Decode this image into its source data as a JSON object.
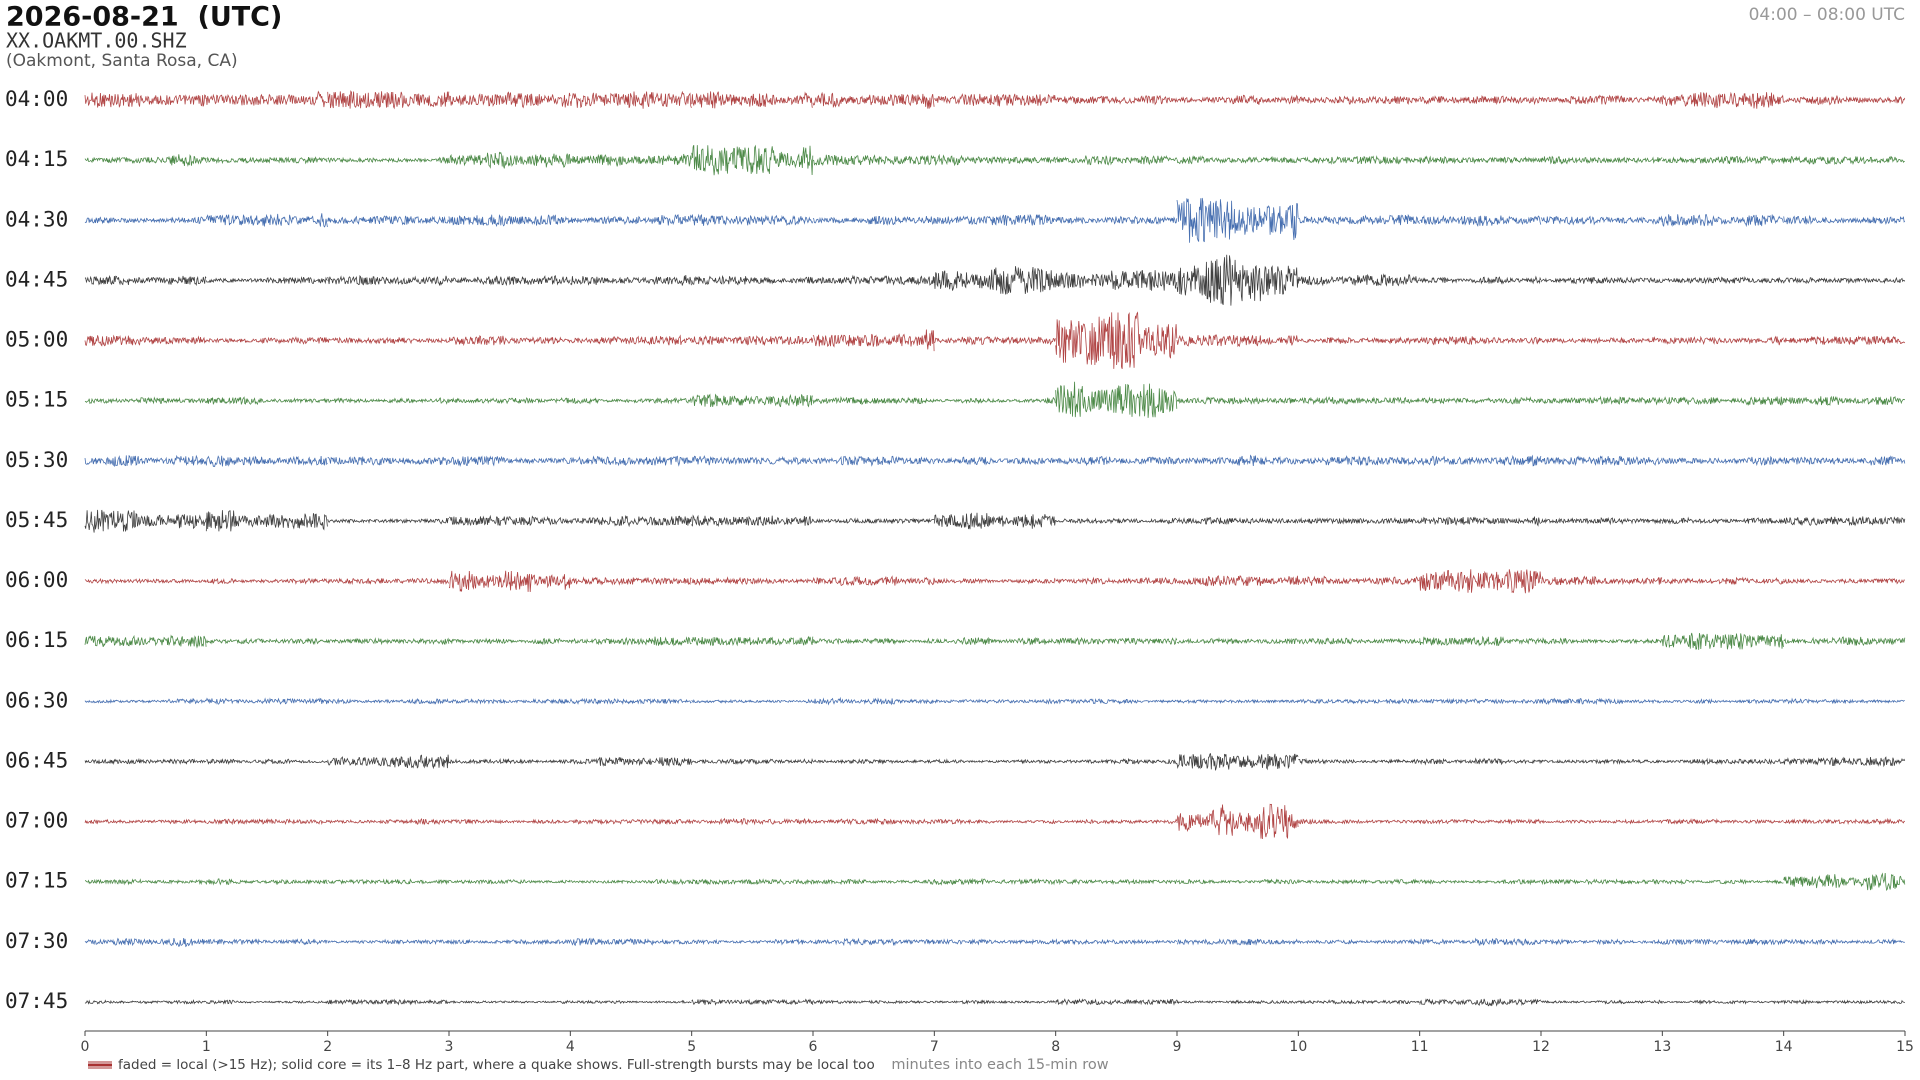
{
  "chart_data": {
    "type": "helicorder",
    "title": "2026-08-21  (UTC)",
    "subtitle": "XX.OAKMT.00.SHZ",
    "location": "(Oakmont, Santa Rosa, CA)",
    "time_range": "04:00 – 08:00 UTC",
    "xlabel": "minutes into each 15-min row",
    "note": "faded = local (>15 Hz); solid core = its 1–8 Hz part, where a quake shows. Full-strength bursts may be local too",
    "xlim": [
      0,
      15
    ],
    "xticks": [
      0,
      1,
      2,
      3,
      4,
      5,
      6,
      7,
      8,
      9,
      10,
      11,
      12,
      13,
      14,
      15
    ],
    "series": [
      {
        "name": "04:00",
        "color": "#a83232",
        "values": [
          0.16,
          0.16,
          0.16,
          0.16,
          0.2,
          0.15,
          0.15,
          0.12,
          0.08,
          0.08,
          0.08,
          0.08,
          0.08,
          0.15,
          0.08
        ]
      },
      {
        "name": "04:15",
        "color": "#3a7d34",
        "values": [
          0.1,
          0.06,
          0.06,
          0.15,
          0.12,
          0.3,
          0.1,
          0.1,
          0.08,
          0.07,
          0.07,
          0.07,
          0.07,
          0.07,
          0.07
        ]
      },
      {
        "name": "04:30",
        "color": "#3461a8",
        "values": [
          0.06,
          0.12,
          0.08,
          0.1,
          0.1,
          0.1,
          0.08,
          0.12,
          0.08,
          0.5,
          0.1,
          0.12,
          0.08,
          0.12,
          0.08
        ]
      },
      {
        "name": "04:45",
        "color": "#2b2b2b",
        "values": [
          0.08,
          0.06,
          0.1,
          0.08,
          0.1,
          0.08,
          0.08,
          0.25,
          0.2,
          0.5,
          0.12,
          0.06,
          0.06,
          0.06,
          0.06
        ]
      },
      {
        "name": "05:00",
        "color": "#a83232",
        "values": [
          0.1,
          0.06,
          0.06,
          0.08,
          0.08,
          0.1,
          0.2,
          0.08,
          0.5,
          0.1,
          0.06,
          0.08,
          0.06,
          0.08,
          0.08
        ]
      },
      {
        "name": "05:15",
        "color": "#3a7d34",
        "values": [
          0.05,
          0.06,
          0.05,
          0.05,
          0.05,
          0.12,
          0.06,
          0.05,
          0.35,
          0.06,
          0.06,
          0.06,
          0.08,
          0.08,
          0.08
        ]
      },
      {
        "name": "05:30",
        "color": "#3461a8",
        "values": [
          0.1,
          0.1,
          0.08,
          0.08,
          0.08,
          0.1,
          0.1,
          0.08,
          0.08,
          0.1,
          0.1,
          0.1,
          0.08,
          0.08,
          0.08
        ]
      },
      {
        "name": "05:45",
        "color": "#2b2b2b",
        "values": [
          0.2,
          0.2,
          0.05,
          0.08,
          0.1,
          0.1,
          0.05,
          0.2,
          0.05,
          0.06,
          0.06,
          0.08,
          0.06,
          0.06,
          0.08
        ]
      },
      {
        "name": "06:00",
        "color": "#a83232",
        "values": [
          0.05,
          0.05,
          0.05,
          0.2,
          0.08,
          0.06,
          0.08,
          0.05,
          0.06,
          0.1,
          0.08,
          0.3,
          0.08,
          0.06,
          0.05
        ]
      },
      {
        "name": "06:15",
        "color": "#3a7d34",
        "values": [
          0.1,
          0.05,
          0.06,
          0.05,
          0.08,
          0.08,
          0.05,
          0.06,
          0.06,
          0.05,
          0.05,
          0.08,
          0.05,
          0.15,
          0.08
        ]
      },
      {
        "name": "06:30",
        "color": "#3461a8",
        "values": [
          0.04,
          0.05,
          0.04,
          0.04,
          0.05,
          0.04,
          0.05,
          0.04,
          0.04,
          0.04,
          0.05,
          0.04,
          0.05,
          0.04,
          0.04
        ]
      },
      {
        "name": "06:45",
        "color": "#2b2b2b",
        "values": [
          0.04,
          0.04,
          0.12,
          0.04,
          0.08,
          0.05,
          0.04,
          0.04,
          0.04,
          0.2,
          0.04,
          0.05,
          0.04,
          0.04,
          0.1
        ]
      },
      {
        "name": "07:00",
        "color": "#a83232",
        "values": [
          0.04,
          0.04,
          0.05,
          0.04,
          0.04,
          0.05,
          0.05,
          0.04,
          0.04,
          0.3,
          0.04,
          0.04,
          0.04,
          0.04,
          0.04
        ]
      },
      {
        "name": "07:15",
        "color": "#3a7d34",
        "values": [
          0.04,
          0.05,
          0.04,
          0.04,
          0.04,
          0.05,
          0.04,
          0.05,
          0.04,
          0.04,
          0.04,
          0.04,
          0.04,
          0.04,
          0.15
        ]
      },
      {
        "name": "07:30",
        "color": "#3461a8",
        "values": [
          0.08,
          0.05,
          0.04,
          0.04,
          0.06,
          0.04,
          0.06,
          0.04,
          0.04,
          0.06,
          0.04,
          0.06,
          0.04,
          0.05,
          0.04
        ]
      },
      {
        "name": "07:45",
        "color": "#2b2b2b",
        "values": [
          0.03,
          0.03,
          0.04,
          0.03,
          0.03,
          0.06,
          0.03,
          0.03,
          0.06,
          0.03,
          0.03,
          0.08,
          0.03,
          0.03,
          0.03
        ]
      }
    ]
  }
}
